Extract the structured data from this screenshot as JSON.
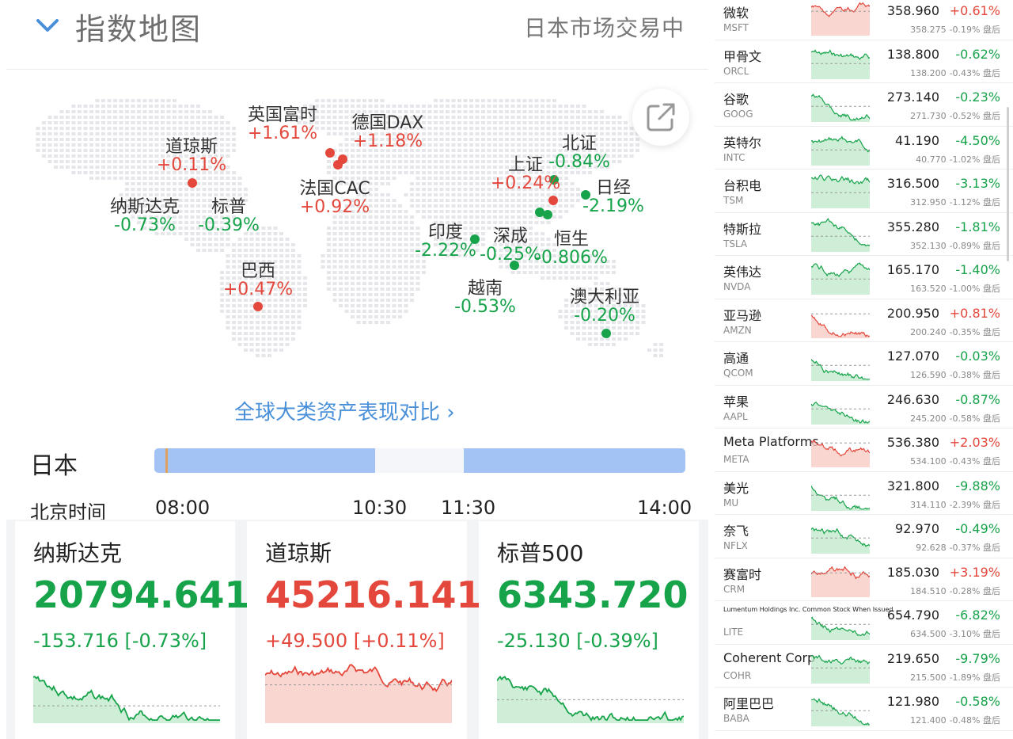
{
  "header": {
    "title": "指数地图",
    "market_status": "日本市场交易中"
  },
  "map": {
    "markers": [
      {
        "name": "英国富时",
        "change": "+1.61%",
        "dir": "up"
      },
      {
        "name": "德国DAX",
        "change": "+1.18%",
        "dir": "up"
      },
      {
        "name": "道琼斯",
        "change": "+0.11%",
        "dir": "up"
      },
      {
        "name": "法国CAC",
        "change": "+0.92%",
        "dir": "up"
      },
      {
        "name": "纳斯达克",
        "change": "-0.73%",
        "dir": "dn"
      },
      {
        "name": "标普",
        "change": "-0.39%",
        "dir": "dn"
      },
      {
        "name": "巴西",
        "change": "+0.47%",
        "dir": "up"
      },
      {
        "name": "北证",
        "change": "-0.84%",
        "dir": "dn"
      },
      {
        "name": "上证",
        "change": "+0.24%",
        "dir": "up"
      },
      {
        "name": "日经",
        "change": "-2.19%",
        "dir": "dn"
      },
      {
        "name": "印度",
        "change": "-2.22%",
        "dir": "dn"
      },
      {
        "name": "深成",
        "change": "-0.25%",
        "dir": "dn"
      },
      {
        "name": "恒生",
        "change": "-0.806%",
        "dir": "dn"
      },
      {
        "name": "越南",
        "change": "-0.53%",
        "dir": "dn"
      },
      {
        "name": "澳大利亚",
        "change": "-0.20%",
        "dir": "dn"
      }
    ],
    "compare_link": "全球大类资产表现对比 ›",
    "share_icon": "share-external-icon"
  },
  "timeline": {
    "country": "日本",
    "beijing_label": "北京时间",
    "ticks": [
      "08:00",
      "10:30",
      "11:30",
      "14:00"
    ]
  },
  "index_cards": [
    {
      "name": "纳斯达克",
      "value": "20794.641",
      "change": "-153.716 [-0.73%]",
      "dir": "dn"
    },
    {
      "name": "道琼斯",
      "value": "45216.141",
      "change": "+49.500 [+0.11%]",
      "dir": "up"
    },
    {
      "name": "标普500",
      "value": "6343.720",
      "change": "-25.130 [-0.39%]",
      "dir": "dn"
    }
  ],
  "stocks": [
    {
      "name": "微软",
      "code": "MSFT",
      "price": "358.960",
      "pct": "+0.61%",
      "ah_price": "358.275",
      "ah_pct": "-0.19%",
      "ah_label": "盘后",
      "dir": "up"
    },
    {
      "name": "甲骨文",
      "code": "ORCL",
      "price": "138.800",
      "pct": "-0.62%",
      "ah_price": "138.200",
      "ah_pct": "-0.43%",
      "ah_label": "盘后",
      "dir": "dn"
    },
    {
      "name": "谷歌",
      "code": "GOOG",
      "price": "273.140",
      "pct": "-0.23%",
      "ah_price": "271.730",
      "ah_pct": "-0.52%",
      "ah_label": "盘后",
      "dir": "dn"
    },
    {
      "name": "英特尔",
      "code": "INTC",
      "price": "41.190",
      "pct": "-4.50%",
      "ah_price": "40.770",
      "ah_pct": "-1.02%",
      "ah_label": "盘后",
      "dir": "dn"
    },
    {
      "name": "台积电",
      "code": "TSM",
      "price": "316.500",
      "pct": "-3.13%",
      "ah_price": "312.950",
      "ah_pct": "-1.12%",
      "ah_label": "盘后",
      "dir": "dn"
    },
    {
      "name": "特斯拉",
      "code": "TSLA",
      "price": "355.280",
      "pct": "-1.81%",
      "ah_price": "352.130",
      "ah_pct": "-0.89%",
      "ah_label": "盘后",
      "dir": "dn"
    },
    {
      "name": "英伟达",
      "code": "NVDA",
      "price": "165.170",
      "pct": "-1.40%",
      "ah_price": "163.520",
      "ah_pct": "-1.00%",
      "ah_label": "盘后",
      "dir": "dn"
    },
    {
      "name": "亚马逊",
      "code": "AMZN",
      "price": "200.950",
      "pct": "+0.81%",
      "ah_price": "200.240",
      "ah_pct": "-0.35%",
      "ah_label": "盘后",
      "dir": "up"
    },
    {
      "name": "高通",
      "code": "QCOM",
      "price": "127.070",
      "pct": "-0.03%",
      "ah_price": "126.590",
      "ah_pct": "-0.38%",
      "ah_label": "盘后",
      "dir": "dn"
    },
    {
      "name": "苹果",
      "code": "AAPL",
      "price": "246.630",
      "pct": "-0.87%",
      "ah_price": "245.200",
      "ah_pct": "-0.58%",
      "ah_label": "盘后",
      "dir": "dn"
    },
    {
      "name": "Meta Platforms",
      "code": "META",
      "price": "536.380",
      "pct": "+2.03%",
      "ah_price": "534.100",
      "ah_pct": "-0.43%",
      "ah_label": "盘后",
      "dir": "up"
    },
    {
      "name": "美光",
      "code": "MU",
      "price": "321.800",
      "pct": "-9.88%",
      "ah_price": "314.110",
      "ah_pct": "-2.39%",
      "ah_label": "盘后",
      "dir": "dn"
    },
    {
      "name": "奈飞",
      "code": "NFLX",
      "price": "92.970",
      "pct": "-0.49%",
      "ah_price": "92.628",
      "ah_pct": "-0.37%",
      "ah_label": "盘后",
      "dir": "dn"
    },
    {
      "name": "赛富时",
      "code": "CRM",
      "price": "185.030",
      "pct": "+3.19%",
      "ah_price": "184.510",
      "ah_pct": "-0.28%",
      "ah_label": "盘后",
      "dir": "up"
    },
    {
      "name": "Lumentum Holdings Inc. Common Stock When Issued",
      "code": "LITE",
      "price": "654.790",
      "pct": "-6.82%",
      "ah_price": "634.500",
      "ah_pct": "-3.10%",
      "ah_label": "盘后",
      "dir": "dn"
    },
    {
      "name": "Coherent Corp",
      "code": "COHR",
      "price": "219.650",
      "pct": "-9.79%",
      "ah_price": "215.500",
      "ah_pct": "-1.89%",
      "ah_label": "盘后",
      "dir": "dn"
    },
    {
      "name": "阿里巴巴",
      "code": "BABA",
      "price": "121.980",
      "pct": "-0.58%",
      "ah_price": "121.400",
      "ah_pct": "-0.48%",
      "ah_label": "盘后",
      "dir": "dn"
    }
  ],
  "colors": {
    "up": "#e4473b",
    "down": "#16a34a",
    "accent": "#4a90d9"
  }
}
